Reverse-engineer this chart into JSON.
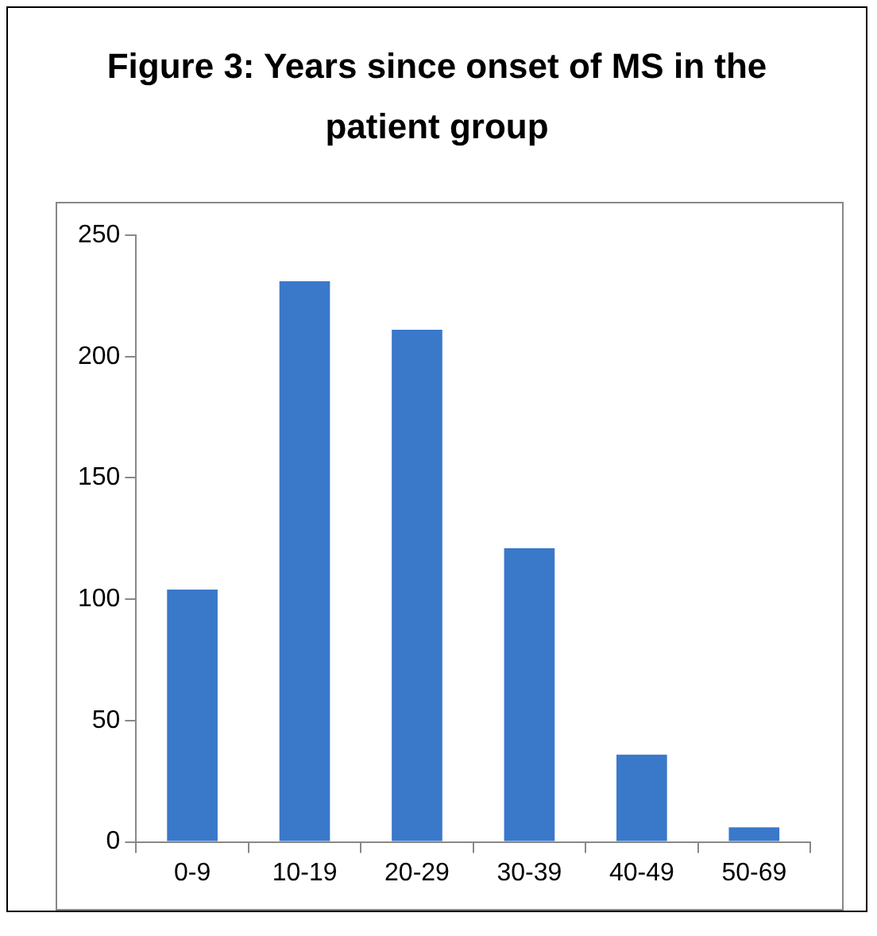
{
  "chart_data": {
    "type": "bar",
    "title": "Figure 3: Years since onset of MS in the patient group",
    "categories": [
      "0-9",
      "10-19",
      "20-29",
      "30-39",
      "40-49",
      "50-69"
    ],
    "values": [
      104,
      231,
      211,
      121,
      36,
      6
    ],
    "color": "#3a78c9",
    "ylim": [
      0,
      250
    ],
    "yticks": [
      0,
      50,
      100,
      150,
      200,
      250
    ],
    "grid": false,
    "legend": false
  }
}
